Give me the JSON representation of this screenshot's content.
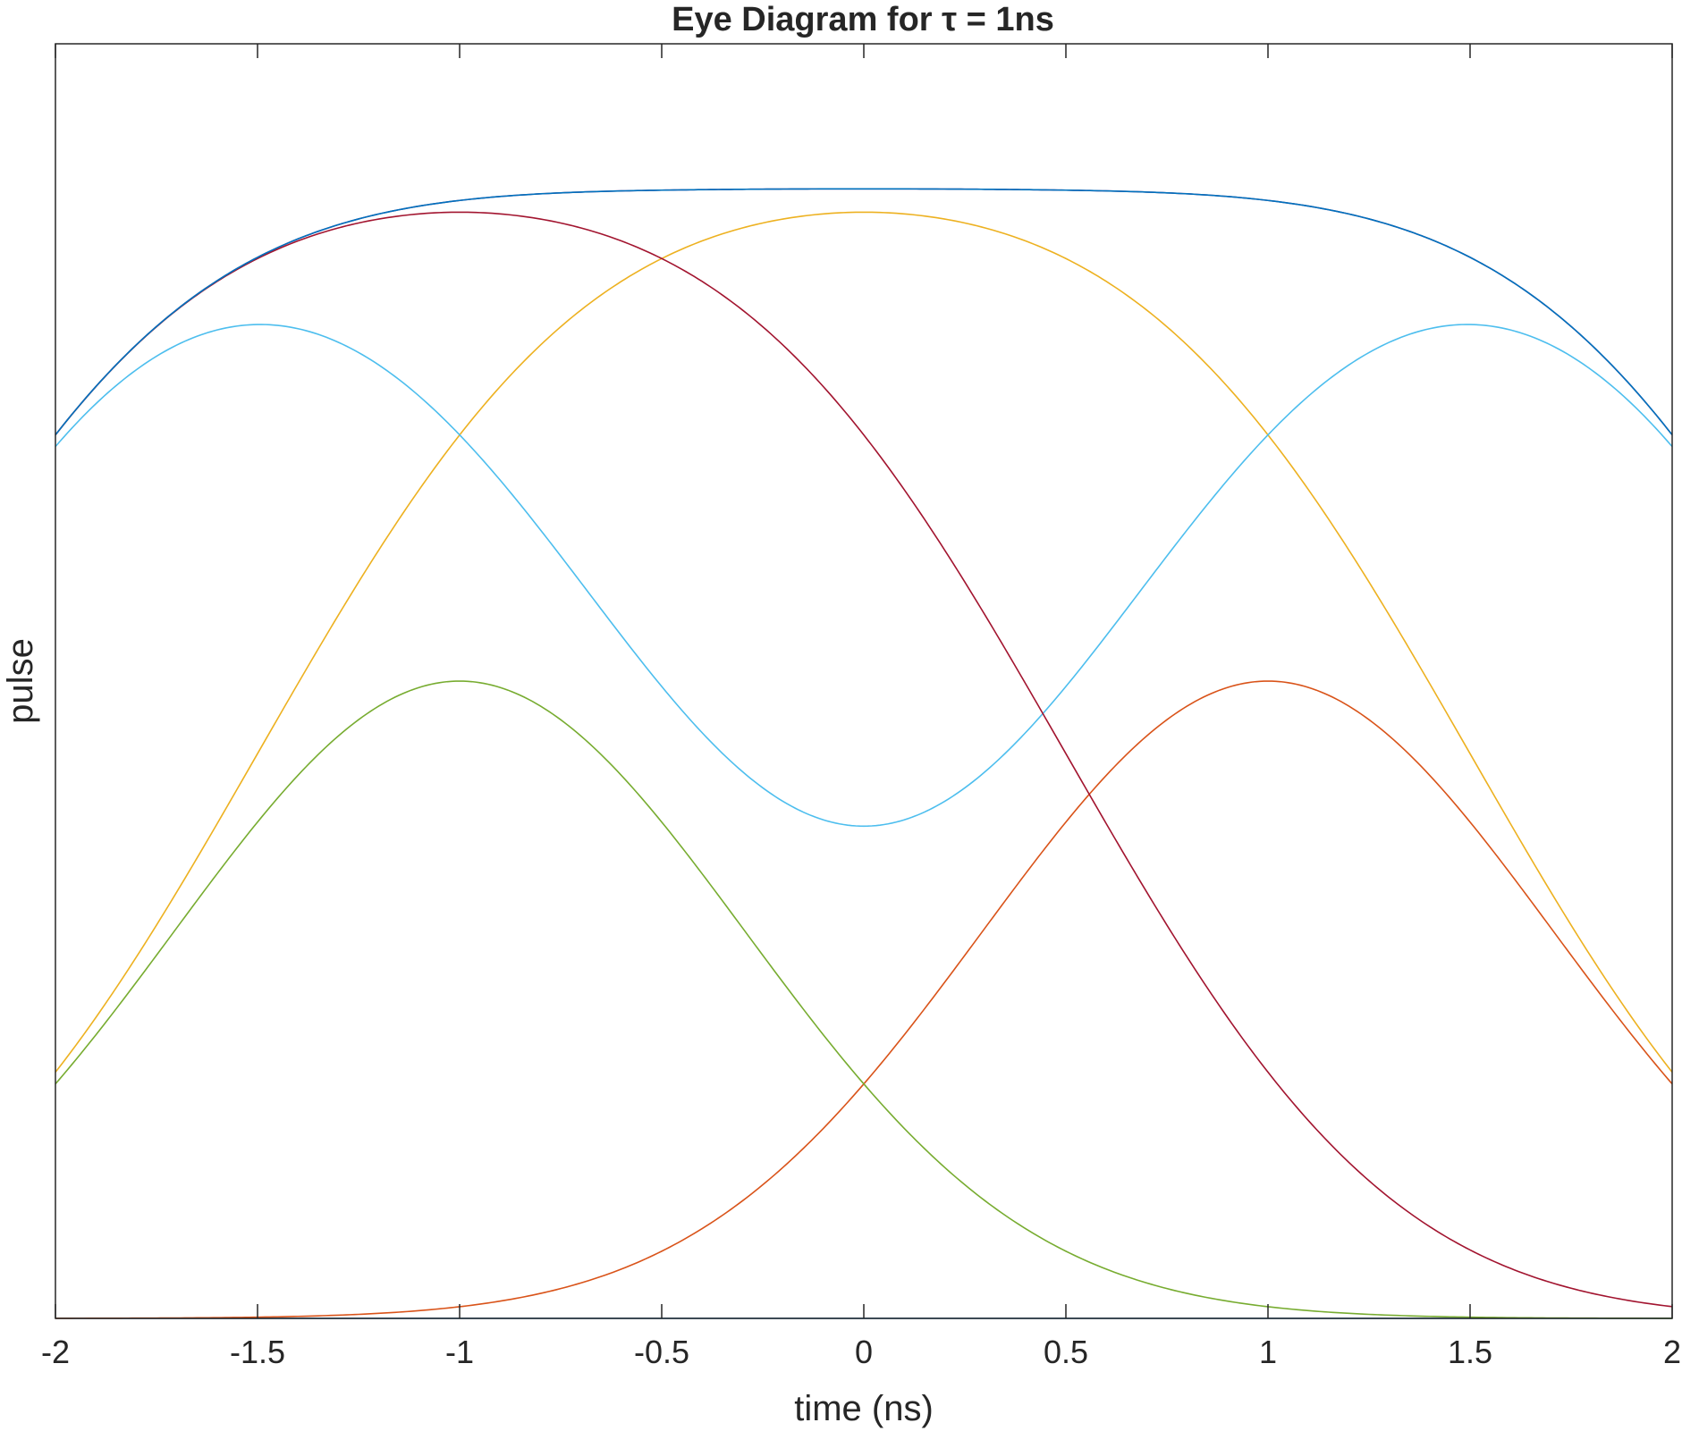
{
  "chart_data": {
    "type": "line",
    "title": "Eye Diagram for τ = 1ns",
    "xlabel": "time (ns)",
    "ylabel": "pulse",
    "xlim": [
      -2,
      2
    ],
    "ylim": [
      0,
      2
    ],
    "xticks": [
      -2,
      -1.5,
      -1,
      -0.5,
      0,
      0.5,
      1,
      1.5,
      2
    ],
    "xtick_labels": [
      "-2",
      "-1.5",
      "-1",
      "-0.5",
      "0",
      "0.5",
      "1",
      "1.5",
      "2"
    ],
    "yticks_shown": false,
    "grid": false,
    "box": true,
    "pulse_shape": "gaussian",
    "tau_ns": 1,
    "series": [
      {
        "pattern": [
          0,
          0,
          0,
          0,
          0
        ],
        "color": "#0072BD"
      },
      {
        "pattern": [
          0,
          0,
          0,
          1,
          0
        ],
        "color": "#D95319"
      },
      {
        "pattern": [
          0,
          1,
          1,
          1,
          0
        ],
        "color": "#EDB120"
      },
      {
        "pattern": [
          1,
          1,
          1,
          1,
          1
        ],
        "color": "#7E2F8E"
      },
      {
        "pattern": [
          0,
          1,
          0,
          0,
          0
        ],
        "color": "#77AC30"
      },
      {
        "pattern": [
          1,
          1,
          0,
          1,
          1
        ],
        "color": "#4DBEEE"
      },
      {
        "pattern": [
          1,
          1,
          1,
          0,
          0
        ],
        "color": "#A2142F"
      },
      {
        "pattern": [
          1,
          1,
          1,
          1,
          1
        ],
        "color": "#0072BD"
      }
    ]
  }
}
